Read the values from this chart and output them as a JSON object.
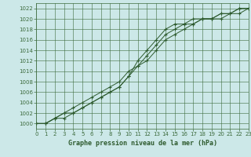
{
  "title": "Graphe pression niveau de la mer (hPa)",
  "bg_color": "#cce8e8",
  "grid_color": "#3d6b3d",
  "line_color": "#2d5a2d",
  "xlim": [
    0,
    23
  ],
  "ylim": [
    999,
    1023
  ],
  "yticks": [
    1000,
    1002,
    1004,
    1006,
    1008,
    1010,
    1012,
    1014,
    1016,
    1018,
    1020,
    1022
  ],
  "xticks": [
    0,
    1,
    2,
    3,
    4,
    5,
    6,
    7,
    8,
    9,
    10,
    11,
    12,
    13,
    14,
    15,
    16,
    17,
    18,
    19,
    20,
    21,
    22,
    23
  ],
  "line1_x": [
    0,
    1,
    2,
    3,
    4,
    5,
    6,
    7,
    8,
    9,
    10,
    11,
    12,
    13,
    14,
    15,
    16,
    17,
    18,
    19,
    20,
    21,
    22,
    23
  ],
  "line1_y": [
    1000,
    1000,
    1001,
    1002,
    1003,
    1004,
    1005,
    1006,
    1007,
    1008,
    1010,
    1011,
    1012,
    1014,
    1016,
    1017,
    1018,
    1019,
    1020,
    1020,
    1021,
    1021,
    1022,
    1022
  ],
  "line2_x": [
    0,
    1,
    2,
    3,
    4,
    5,
    6,
    7,
    8,
    9,
    10,
    11,
    12,
    13,
    14,
    15,
    16,
    17,
    18,
    19,
    20,
    21,
    22,
    23
  ],
  "line2_y": [
    1000,
    1000,
    1001,
    1001,
    1002,
    1003,
    1004,
    1005,
    1006,
    1007,
    1009,
    1011,
    1013,
    1015,
    1017,
    1018,
    1019,
    1019,
    1020,
    1020,
    1020,
    1021,
    1021,
    1022
  ],
  "line3_x": [
    0,
    1,
    2,
    3,
    4,
    5,
    6,
    7,
    8,
    9,
    10,
    11,
    12,
    13,
    14,
    15,
    16,
    17,
    18,
    19,
    20,
    21,
    22,
    23
  ],
  "line3_y": [
    1000,
    1000,
    1001,
    1002,
    1002,
    1003,
    1004,
    1005,
    1006,
    1007,
    1009,
    1012,
    1014,
    1016,
    1018,
    1019,
    1019,
    1020,
    1020,
    1020,
    1021,
    1021,
    1022,
    1022
  ]
}
